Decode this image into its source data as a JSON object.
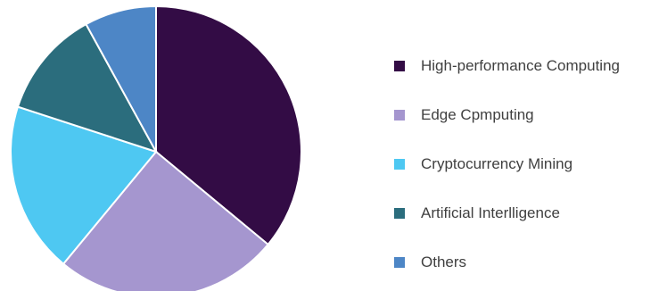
{
  "chart_data": {
    "type": "pie",
    "title": "",
    "legend_position": "right",
    "start_angle_deg": 0,
    "direction": "clockwise",
    "series": [
      {
        "slices": [
          {
            "label": "High-performance Computing",
            "value": 36,
            "color": "#330c45"
          },
          {
            "label": "Edge Cpmputing",
            "value": 25,
            "color": "#a596cf"
          },
          {
            "label": "Cryptocurrency Mining",
            "value": 19,
            "color": "#4ec8f2"
          },
          {
            "label": "Artificial Interlligence",
            "value": 12,
            "color": "#2b6d7d"
          },
          {
            "label": "Others",
            "value": 8,
            "color": "#4d86c6"
          }
        ]
      }
    ]
  }
}
